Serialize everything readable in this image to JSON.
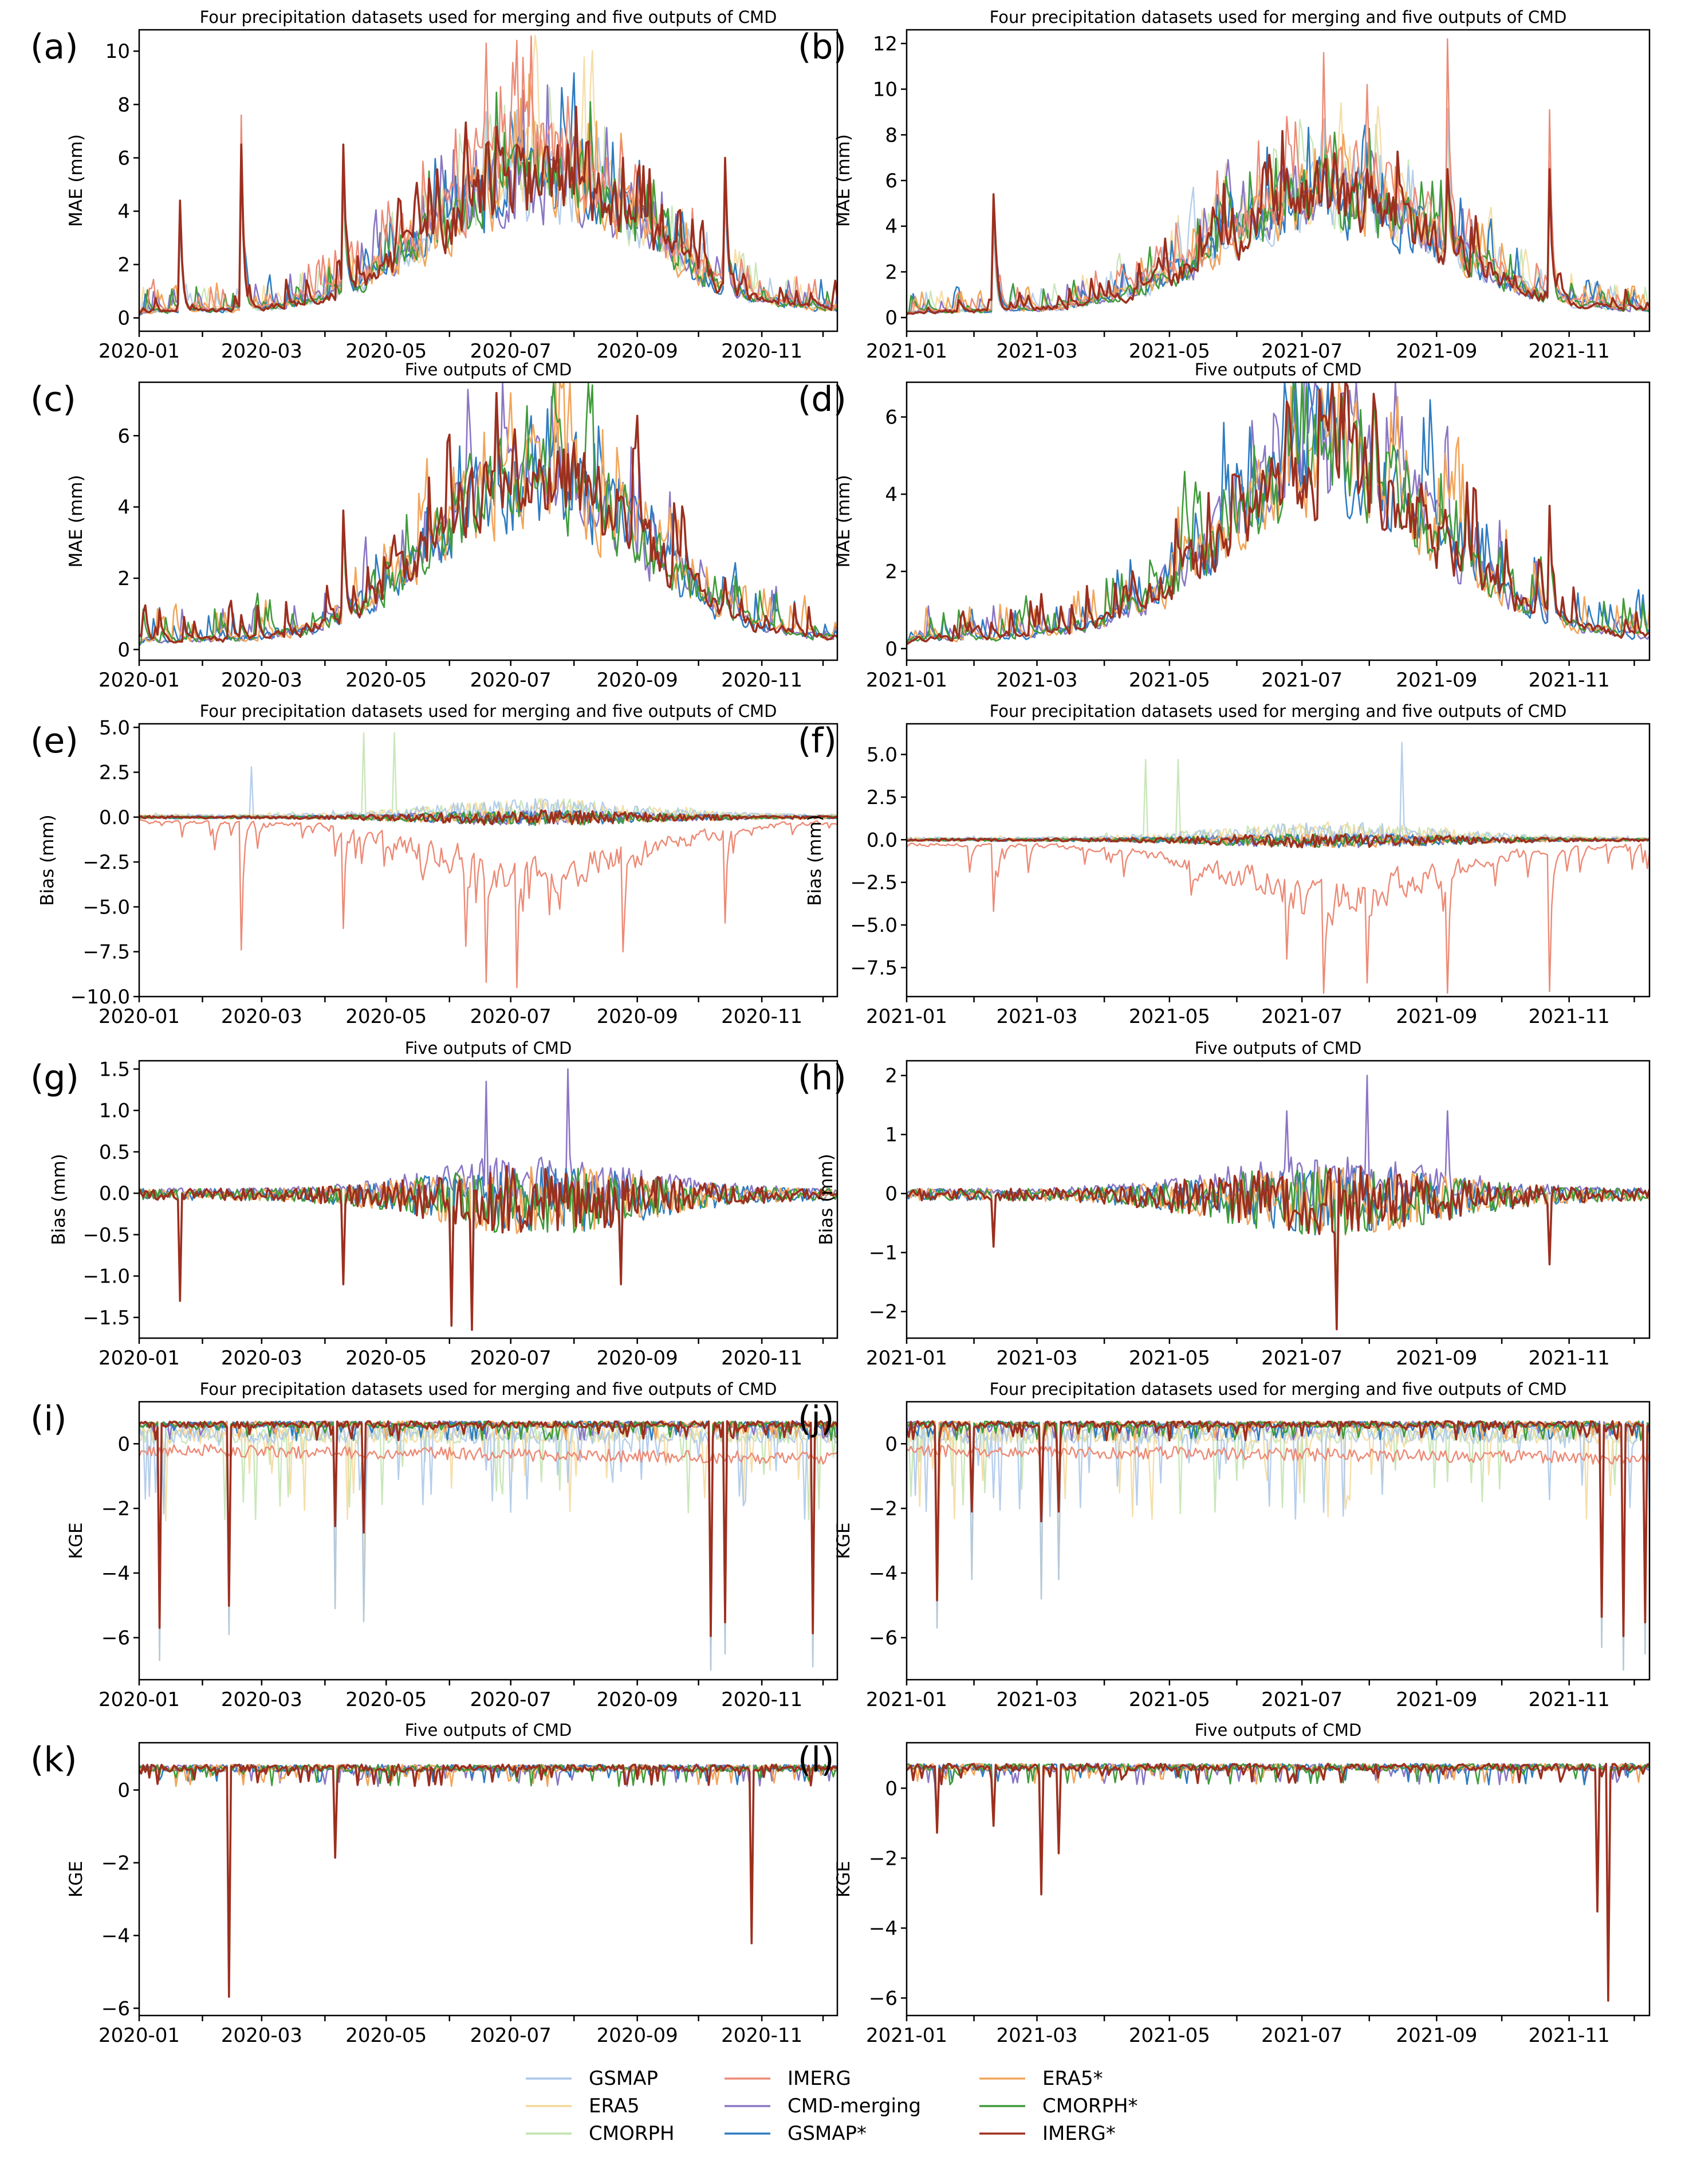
{
  "figure": {
    "title_full": "Four precipitation datasets used for merging and five outputs of CMD",
    "title_cmd": "Five outputs of CMD"
  },
  "legend": [
    {
      "name": "GSMAP",
      "color": "#a9c6e8"
    },
    {
      "name": "ERA5",
      "color": "#f4d89a"
    },
    {
      "name": "CMORPH",
      "color": "#bfe3ad"
    },
    {
      "name": "IMERG",
      "color": "#ec8a76"
    },
    {
      "name": "CMD-merging",
      "color": "#8a76c4"
    },
    {
      "name": "GSMAP*",
      "color": "#2e7cc1"
    },
    {
      "name": "ERA5*",
      "color": "#f2a55a"
    },
    {
      "name": "CMORPH*",
      "color": "#3f9b3a"
    },
    {
      "name": "IMERG*",
      "color": "#9c2f1f"
    }
  ],
  "chart_data": [
    {
      "id": "a",
      "label": "(a)",
      "type": "line",
      "title": "Four precipitation datasets used for merging and five outputs of CMD",
      "ylabel": "MAE (mm)",
      "year": 2020,
      "ylim": [
        -0.5,
        10.8
      ],
      "yticks": [
        0,
        2,
        4,
        6,
        8,
        10
      ],
      "ytick_labels": [
        "0",
        "2",
        "4",
        "6",
        "8",
        "10"
      ],
      "xtick_labels": [
        "2020-01",
        "2020-03",
        "2020-05",
        "2020-07",
        "2020-09",
        "2020-11"
      ],
      "metric": "mae",
      "full": true,
      "peak": 5.0,
      "scale": 1.0,
      "series_summary": [
        {
          "name": "IMERG",
          "max": 10.4
        },
        {
          "name": "CMORPH",
          "max": 8.6
        },
        {
          "name": "ERA5",
          "max": 8.4
        },
        {
          "name": "GSMAP",
          "max": 7.5
        },
        {
          "name": "IMERG*",
          "max": 5.9
        }
      ],
      "spikes": [
        [
          20,
          4.4
        ],
        [
          50,
          7.6
        ],
        [
          100,
          6.5
        ],
        [
          170,
          10.3
        ],
        [
          185,
          10.4
        ],
        [
          210,
          8.3
        ],
        [
          237,
          6.0
        ],
        [
          287,
          6.0
        ]
      ]
    },
    {
      "id": "b",
      "label": "(b)",
      "type": "line",
      "title": "Four precipitation datasets used for merging and five outputs of CMD",
      "ylabel": "MAE (mm)",
      "year": 2021,
      "ylim": [
        -0.6,
        12.6
      ],
      "yticks": [
        0,
        2,
        4,
        6,
        8,
        10,
        12
      ],
      "ytick_labels": [
        "0",
        "2",
        "4",
        "6",
        "8",
        "10",
        "12"
      ],
      "xtick_labels": [
        "2021-01",
        "2021-03",
        "2021-05",
        "2021-07",
        "2021-09",
        "2021-11"
      ],
      "metric": "mae",
      "full": true,
      "peak": 5.0,
      "scale": 1.0,
      "series_summary": [
        {
          "name": "IMERG",
          "max": 12.2
        },
        {
          "name": "CMORPH",
          "max": 8.0
        },
        {
          "name": "ERA5",
          "max": 7.8
        },
        {
          "name": "GSMAP",
          "max": 7.7
        },
        {
          "name": "IMERG*",
          "max": 6.7
        }
      ],
      "spikes": [
        [
          40,
          5.4
        ],
        [
          175,
          8.8
        ],
        [
          192,
          11.6
        ],
        [
          212,
          10.2
        ],
        [
          249,
          12.2
        ],
        [
          296,
          9.1
        ]
      ]
    },
    {
      "id": "c",
      "label": "(c)",
      "type": "line",
      "title": "Five outputs of CMD",
      "ylabel": "MAE (mm)",
      "year": 2020,
      "ylim": [
        -0.3,
        7.5
      ],
      "yticks": [
        0,
        2,
        4,
        6
      ],
      "ytick_labels": [
        "0",
        "2",
        "4",
        "6"
      ],
      "xtick_labels": [
        "2020-01",
        "2020-03",
        "2020-05",
        "2020-07",
        "2020-09",
        "2020-11"
      ],
      "metric": "mae",
      "full": false,
      "peak": 4.6,
      "scale": 1.0,
      "spikes": [
        [
          100,
          3.9
        ],
        [
          163,
          5.1
        ],
        [
          175,
          7.2
        ],
        [
          213,
          5.8
        ],
        [
          236,
          4.3
        ],
        [
          287,
          2.0
        ]
      ]
    },
    {
      "id": "d",
      "label": "(d)",
      "type": "line",
      "title": "Five outputs of CMD",
      "ylabel": "MAE (mm)",
      "year": 2021,
      "ylim": [
        -0.3,
        6.9
      ],
      "yticks": [
        0,
        2,
        4,
        6
      ],
      "ytick_labels": [
        "0",
        "2",
        "4",
        "6"
      ],
      "xtick_labels": [
        "2021-01",
        "2021-03",
        "2021-05",
        "2021-07",
        "2021-09",
        "2021-11"
      ],
      "metric": "mae",
      "full": false,
      "peak": 4.5,
      "scale": 1.0,
      "spikes": [
        [
          150,
          4.5
        ],
        [
          175,
          6.4
        ],
        [
          190,
          6.7
        ],
        [
          200,
          6.6
        ],
        [
          215,
          6.6
        ],
        [
          258,
          4.3
        ],
        [
          296,
          3.7
        ]
      ]
    },
    {
      "id": "e",
      "label": "(e)",
      "type": "line",
      "title": "Four precipitation datasets used for merging and five outputs of CMD",
      "ylabel": "Bias (mm)",
      "year": 2020,
      "ylim": [
        -10.0,
        5.2
      ],
      "yticks": [
        -10,
        -7.5,
        -5,
        -2.5,
        0,
        2.5,
        5
      ],
      "ytick_labels": [
        "−10.0",
        "−7.5",
        "−5.0",
        "−2.5",
        "0.0",
        "2.5",
        "5.0"
      ],
      "xtick_labels": [
        "2020-01",
        "2020-03",
        "2020-05",
        "2020-07",
        "2020-09",
        "2020-11"
      ],
      "metric": "bias",
      "full": true,
      "peak": 1.0,
      "scale": 1.0,
      "series_summary": [
        {
          "name": "IMERG",
          "min": -9.5
        },
        {
          "name": "CMORPH",
          "max": 4.7
        },
        {
          "name": "GSMAP",
          "max": 2.8
        }
      ],
      "spikes": [
        [
          50,
          -7.4
        ],
        [
          100,
          -6.2
        ],
        [
          160,
          -7.2
        ],
        [
          170,
          -9.2
        ],
        [
          185,
          -9.5
        ],
        [
          237,
          -7.5
        ],
        [
          287,
          -5.9
        ]
      ]
    },
    {
      "id": "f",
      "label": "(f)",
      "type": "line",
      "title": "Four precipitation datasets used for merging and five outputs of CMD",
      "ylabel": "Bias (mm)",
      "year": 2021,
      "ylim": [
        -9.2,
        6.8
      ],
      "yticks": [
        -7.5,
        -5,
        -2.5,
        0,
        2.5,
        5
      ],
      "ytick_labels": [
        "−7.5",
        "−5.0",
        "−2.5",
        "0.0",
        "2.5",
        "5.0"
      ],
      "xtick_labels": [
        "2021-01",
        "2021-03",
        "2021-05",
        "2021-07",
        "2021-09",
        "2021-11"
      ],
      "metric": "bias",
      "full": true,
      "peak": 1.0,
      "scale": 1.0,
      "series_summary": [
        {
          "name": "IMERG",
          "min": -9.0
        },
        {
          "name": "GSMAP",
          "max": 5.7
        },
        {
          "name": "CMORPH",
          "max": 4.1
        }
      ],
      "spikes": [
        [
          40,
          -4.2
        ],
        [
          175,
          -7.0
        ],
        [
          192,
          -9.0
        ],
        [
          212,
          -8.4
        ],
        [
          249,
          -9.0
        ],
        [
          296,
          -8.9
        ]
      ]
    },
    {
      "id": "g",
      "label": "(g)",
      "type": "line",
      "title": "Five outputs of CMD",
      "ylabel": "Bias (mm)",
      "year": 2020,
      "ylim": [
        -1.75,
        1.6
      ],
      "yticks": [
        -1.5,
        -1.0,
        -0.5,
        0,
        0.5,
        1.0,
        1.5
      ],
      "ytick_labels": [
        "−1.5",
        "−1.0",
        "−0.5",
        "0.0",
        "0.5",
        "1.0",
        "1.5"
      ],
      "xtick_labels": [
        "2020-01",
        "2020-03",
        "2020-05",
        "2020-07",
        "2020-09",
        "2020-11"
      ],
      "metric": "bias_cmd",
      "full": false,
      "peak": 0.6,
      "scale": 0.25,
      "spikes": [
        [
          20,
          -1.3
        ],
        [
          100,
          -1.1
        ],
        [
          153,
          -1.6
        ],
        [
          163,
          -1.65
        ],
        [
          170,
          1.35
        ],
        [
          210,
          1.5
        ],
        [
          236,
          -1.1
        ]
      ]
    },
    {
      "id": "h",
      "label": "(h)",
      "type": "line",
      "title": "Five outputs of CMD",
      "ylabel": "Bias (mm)",
      "year": 2021,
      "ylim": [
        -2.45,
        2.25
      ],
      "yticks": [
        -2,
        -1,
        0,
        1,
        2
      ],
      "ytick_labels": [
        "−2",
        "−1",
        "0",
        "1",
        "2"
      ],
      "xtick_labels": [
        "2021-01",
        "2021-03",
        "2021-05",
        "2021-07",
        "2021-09",
        "2021-11"
      ],
      "metric": "bias_cmd",
      "full": false,
      "peak": 0.8,
      "scale": 0.35,
      "spikes": [
        [
          40,
          -0.9
        ],
        [
          175,
          1.4
        ],
        [
          198,
          -2.3
        ],
        [
          212,
          2.0
        ],
        [
          249,
          1.4
        ],
        [
          296,
          -1.2
        ]
      ]
    },
    {
      "id": "i",
      "label": "(i)",
      "type": "line",
      "title": "Four precipitation datasets used for merging and five outputs of CMD",
      "ylabel": "KGE",
      "year": 2020,
      "ylim": [
        -7.3,
        1.3
      ],
      "yticks": [
        -6,
        -4,
        -2,
        0
      ],
      "ytick_labels": [
        "−6",
        "−4",
        "−2",
        "0"
      ],
      "xtick_labels": [
        "2020-01",
        "2020-03",
        "2020-05",
        "2020-07",
        "2020-09",
        "2020-11"
      ],
      "metric": "kge",
      "full": true,
      "peak": 0.6,
      "scale": 1.0,
      "series_summary": [
        {
          "name": "ERA5",
          "min": -7.0
        },
        {
          "name": "CMORPH",
          "min": -6.8
        },
        {
          "name": "IMERG*",
          "min": -5.9
        },
        {
          "name": "IMERG",
          "min": -0.8
        }
      ],
      "spikes": [
        [
          10,
          -6.7
        ],
        [
          44,
          -5.9
        ],
        [
          96,
          -5.1
        ],
        [
          110,
          -5.5
        ],
        [
          280,
          -7.0
        ],
        [
          287,
          -6.5
        ],
        [
          330,
          -6.9
        ]
      ]
    },
    {
      "id": "j",
      "label": "(j)",
      "type": "line",
      "title": "Four precipitation datasets used for merging and five outputs of CMD",
      "ylabel": "KGE",
      "year": 2021,
      "ylim": [
        -7.3,
        1.3
      ],
      "yticks": [
        -6,
        -4,
        -2,
        0
      ],
      "ytick_labels": [
        "−6",
        "−4",
        "−2",
        "0"
      ],
      "xtick_labels": [
        "2021-01",
        "2021-03",
        "2021-05",
        "2021-07",
        "2021-09",
        "2021-11"
      ],
      "metric": "kge",
      "full": true,
      "peak": 0.6,
      "scale": 1.0,
      "series_summary": [
        {
          "name": "ERA5",
          "min": -7.0
        },
        {
          "name": "IMERG*",
          "min": -6.5
        },
        {
          "name": "CMORPH",
          "min": -5.7
        },
        {
          "name": "IMERG",
          "min": -0.7
        }
      ],
      "spikes": [
        [
          14,
          -5.7
        ],
        [
          30,
          -4.2
        ],
        [
          62,
          -4.8
        ],
        [
          70,
          -4.2
        ],
        [
          320,
          -6.3
        ],
        [
          330,
          -7.0
        ],
        [
          340,
          -6.5
        ]
      ]
    },
    {
      "id": "k",
      "label": "(k)",
      "type": "line",
      "title": "Five outputs of CMD",
      "ylabel": "KGE",
      "year": 2020,
      "ylim": [
        -6.2,
        1.3
      ],
      "yticks": [
        -6,
        -4,
        -2,
        0
      ],
      "ytick_labels": [
        "−6",
        "−4",
        "−2",
        "0"
      ],
      "xtick_labels": [
        "2020-01",
        "2020-03",
        "2020-05",
        "2020-07",
        "2020-09",
        "2020-11"
      ],
      "metric": "kge_cmd",
      "full": false,
      "peak": 0.6,
      "scale": 1.0,
      "spikes": [
        [
          44,
          -5.8
        ],
        [
          96,
          -1.9
        ],
        [
          300,
          -4.3
        ]
      ]
    },
    {
      "id": "l",
      "label": "(l)",
      "type": "line",
      "title": "Five outputs of CMD",
      "ylabel": "KGE",
      "year": 2021,
      "ylim": [
        -6.5,
        1.3
      ],
      "yticks": [
        -6,
        -4,
        -2,
        0
      ],
      "ytick_labels": [
        "−6",
        "−4",
        "−2",
        "0"
      ],
      "xtick_labels": [
        "2021-01",
        "2021-03",
        "2021-05",
        "2021-07",
        "2021-09",
        "2021-11"
      ],
      "metric": "kge_cmd",
      "full": false,
      "peak": 0.6,
      "scale": 1.0,
      "spikes": [
        [
          14,
          -1.3
        ],
        [
          40,
          -1.1
        ],
        [
          62,
          -3.1
        ],
        [
          70,
          -1.9
        ],
        [
          318,
          -3.6
        ],
        [
          323,
          -6.2
        ]
      ]
    }
  ]
}
